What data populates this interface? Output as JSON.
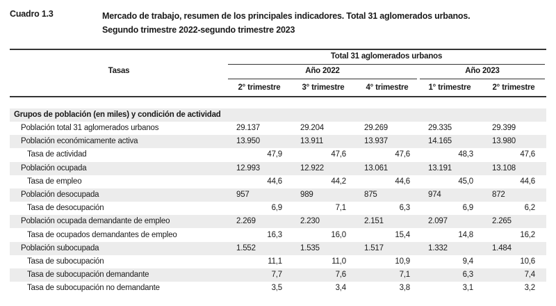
{
  "cuadro": "Cuadro 1.3",
  "title_line1": "Mercado de trabajo, resumen de los principales indicadores. Total 31 aglomerados urbanos.",
  "title_line2": "Segundo trimestre 2022-segundo trimestre 2023",
  "header": {
    "tasas": "Tasas",
    "total": "Total 31 aglomerados urbanos",
    "year1": "Año 2022",
    "year2": "Año 2023",
    "quarters": [
      "2° trimestre",
      "3° trimestre",
      "4° trimestre",
      "1° trimestre",
      "2° trimestre"
    ]
  },
  "group_label": "Grupos de población (en miles) y condición de actividad",
  "rows": [
    {
      "label": "Población total 31 aglomerados urbanos",
      "values": [
        "29.137",
        "29.204",
        "29.269",
        "29.335",
        "29.399"
      ]
    },
    {
      "label": "Población económicamente activa",
      "values": [
        "13.950",
        "13.911",
        "13.937",
        "14.165",
        "13.980"
      ]
    },
    {
      "label": "Tasa de actividad",
      "values": [
        "47,9",
        "47,6",
        "47,6",
        "48,3",
        "47,6"
      ]
    },
    {
      "label": "Población ocupada",
      "values": [
        "12.993",
        "12.922",
        "13.061",
        "13.191",
        "13.108"
      ]
    },
    {
      "label": "Tasa de empleo",
      "values": [
        "44,6",
        "44,2",
        "44,6",
        "45,0",
        "44,6"
      ]
    },
    {
      "label": "Población desocupada",
      "values": [
        "957",
        "989",
        "875",
        "974",
        "872"
      ]
    },
    {
      "label": "Tasa de desocupación",
      "values": [
        "6,9",
        "7,1",
        "6,3",
        "6,9",
        "6,2"
      ]
    },
    {
      "label": "Población ocupada demandante de empleo",
      "values": [
        "2.269",
        "2.230",
        "2.151",
        "2.097",
        "2.265"
      ]
    },
    {
      "label": "Tasa de ocupados demandantes de empleo",
      "values": [
        "16,3",
        "16,0",
        "15,4",
        "14,8",
        "16,2"
      ]
    },
    {
      "label": "Población subocupada",
      "values": [
        "1.552",
        "1.535",
        "1.517",
        "1.332",
        "1.484"
      ]
    },
    {
      "label": "Tasa de subocupación",
      "values": [
        "11,1",
        "11,0",
        "10,9",
        "9,4",
        "10,6"
      ]
    },
    {
      "label": "Tasa de subocupación demandante",
      "values": [
        "7,7",
        "7,6",
        "7,1",
        "6,3",
        "7,4"
      ]
    },
    {
      "label": "Tasa de subocupación no demandante",
      "values": [
        "3,5",
        "3,4",
        "3,8",
        "3,1",
        "3,2"
      ]
    }
  ]
}
